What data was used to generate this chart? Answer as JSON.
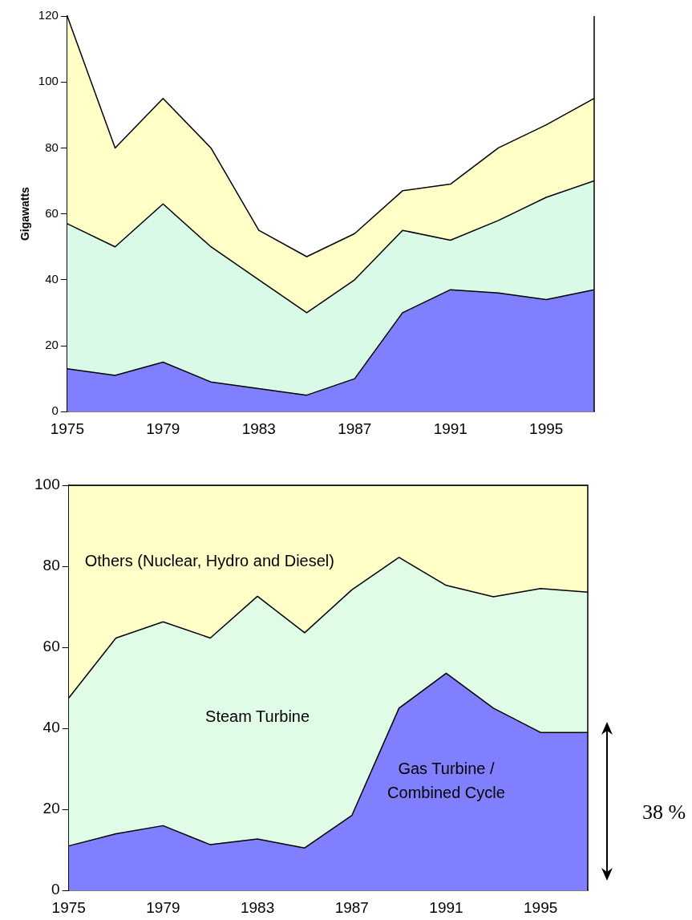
{
  "chart_data": [
    {
      "type": "area",
      "ylabel": "Gigawatts",
      "stacked": true,
      "x": [
        1975,
        1977,
        1979,
        1981,
        1983,
        1985,
        1987,
        1989,
        1991,
        1993,
        1995,
        1997
      ],
      "xlim": [
        1975,
        1997
      ],
      "xticks": [
        1975,
        1979,
        1983,
        1987,
        1991,
        1995
      ],
      "ylim": [
        0,
        120
      ],
      "yticks": [
        0,
        20,
        40,
        60,
        80,
        100,
        120
      ],
      "grid": false,
      "legend": false,
      "series": [
        {
          "color": "#8080ff",
          "values": [
            13,
            11,
            15,
            9,
            7,
            5,
            10,
            30,
            37,
            36,
            34,
            37
          ]
        },
        {
          "color": "#d8fae6",
          "values": [
            44,
            39,
            48,
            41,
            33,
            25,
            30,
            25,
            15,
            22,
            31,
            33
          ]
        },
        {
          "color": "#ffffc8",
          "values": [
            63,
            30,
            32,
            30,
            15,
            17,
            14,
            12,
            17,
            22,
            22,
            25
          ]
        }
      ]
    },
    {
      "type": "area",
      "stacked": true,
      "x": [
        1975,
        1977,
        1979,
        1981,
        1983,
        1985,
        1987,
        1989,
        1991,
        1993,
        1995,
        1997
      ],
      "xlim": [
        1975,
        1997
      ],
      "xticks": [
        1975,
        1979,
        1983,
        1987,
        1991,
        1995
      ],
      "ylim": [
        0,
        100
      ],
      "yticks": [
        0,
        20,
        40,
        60,
        80,
        100
      ],
      "grid": false,
      "legend": false,
      "annotations": [
        "38 %"
      ],
      "series": [
        {
          "name": "Gas Turbine / Combined Cycle",
          "color": "#8080ff",
          "values": [
            11,
            14,
            16,
            11.3,
            12.7,
            10.5,
            18.5,
            45,
            53.6,
            45,
            39,
            39
          ]
        },
        {
          "name": "Steam Turbine",
          "color": "#e0fce6",
          "values": [
            36.5,
            48.3,
            50.3,
            51,
            59.9,
            53.1,
            55.7,
            37.2,
            21.7,
            27.5,
            35.5,
            34.6
          ]
        },
        {
          "name": "Others (Nuclear, Hydro and Diesel)",
          "color": "#ffffc8",
          "values": [
            52.5,
            37.7,
            33.7,
            37.7,
            27.4,
            36.4,
            25.8,
            17.8,
            24.7,
            27.5,
            25.5,
            26.4
          ]
        }
      ]
    }
  ]
}
